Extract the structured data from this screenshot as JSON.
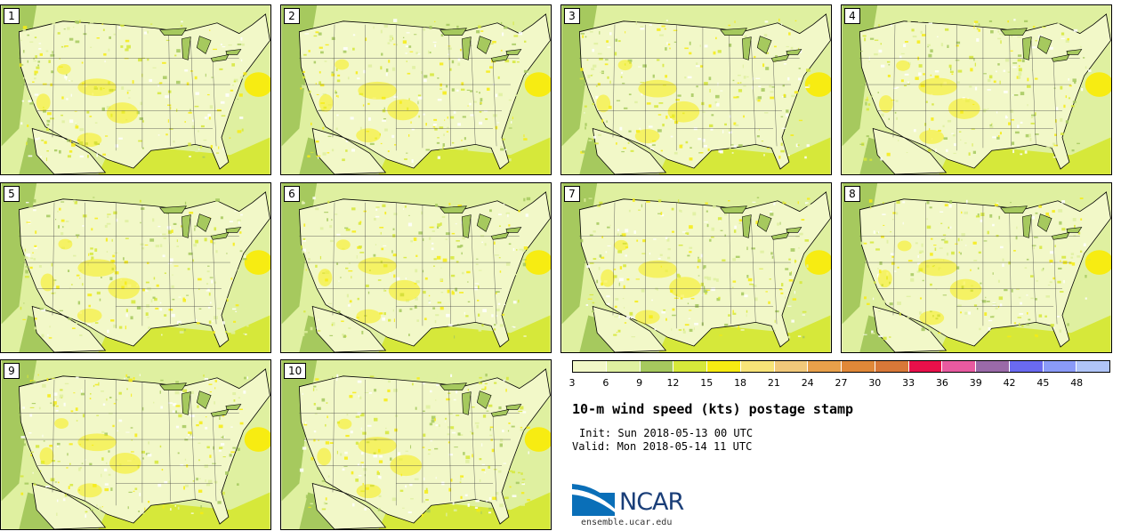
{
  "panels": [
    {
      "label": "1"
    },
    {
      "label": "2"
    },
    {
      "label": "3"
    },
    {
      "label": "4"
    },
    {
      "label": "5"
    },
    {
      "label": "6"
    },
    {
      "label": "7"
    },
    {
      "label": "8"
    },
    {
      "label": "9"
    },
    {
      "label": "10"
    }
  ],
  "colorbar": {
    "colors": [
      "#f2f8c8",
      "#dff0a0",
      "#a6c95e",
      "#d6e83a",
      "#f7ec12",
      "#f8e478",
      "#f2c97a",
      "#e8a04a",
      "#e08838",
      "#d87838",
      "#e8104a",
      "#e85aa0",
      "#9a6aa8",
      "#6a6af0",
      "#8a9af8",
      "#b0c4f8"
    ],
    "ticks": [
      "3",
      "6",
      "9",
      "12",
      "15",
      "18",
      "21",
      "24",
      "27",
      "30",
      "33",
      "36",
      "39",
      "42",
      "45",
      "48"
    ]
  },
  "title": "10-m wind speed (kts) postage stamp",
  "init": "Init: Sun 2018-05-13 00 UTC",
  "valid": "Valid: Mon 2018-05-14 11 UTC",
  "logo": {
    "text": "NCAR",
    "site": "ensemble.ucar.edu"
  }
}
